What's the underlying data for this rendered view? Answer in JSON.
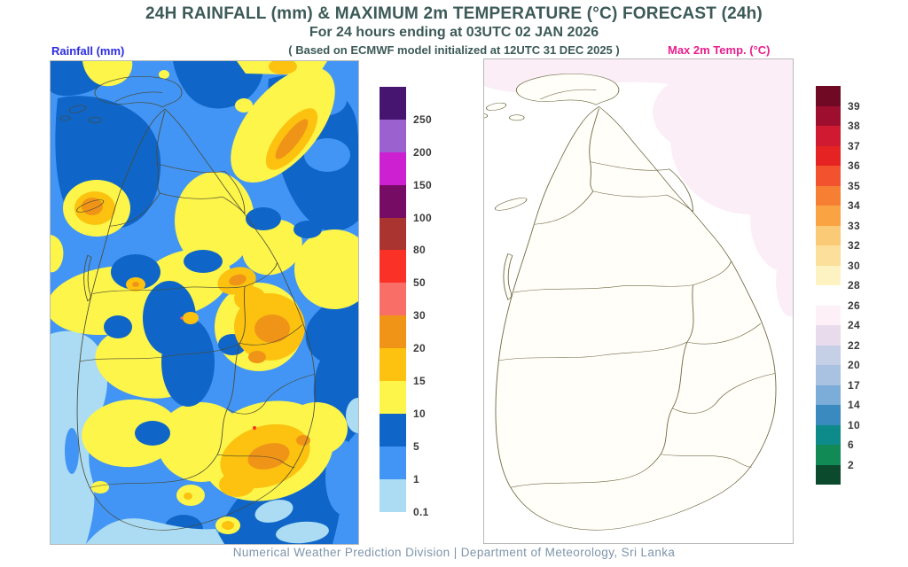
{
  "header": {
    "title": "24H RAINFALL (mm) & MAXIMUM 2m TEMPERATURE (°C) FORECAST (24h)",
    "subtitle": "For 24 hours ending at 03UTC 02 JAN 2026",
    "model_note": "( Based on ECMWF model initialized at 12UTC 31 DEC 2025 )",
    "title_color": "#3c5a57"
  },
  "rainfall_panel": {
    "label": "Rainfall (mm)",
    "label_color": "#2b2be0",
    "unit": "mm",
    "legend": [
      {
        "color": "#45156f",
        "label": "250"
      },
      {
        "color": "#9b62cf",
        "label": "200"
      },
      {
        "color": "#cd20d0",
        "label": "150"
      },
      {
        "color": "#770c64",
        "label": "100"
      },
      {
        "color": "#a93430",
        "label": "80"
      },
      {
        "color": "#fa3127",
        "label": "50"
      },
      {
        "color": "#fa6e68",
        "label": "30"
      },
      {
        "color": "#f09418",
        "label": "20"
      },
      {
        "color": "#fcc20f",
        "label": "15"
      },
      {
        "color": "#fdf54a",
        "label": "10"
      },
      {
        "color": "#0f66c8",
        "label": "5"
      },
      {
        "color": "#4295f4",
        "label": "1"
      },
      {
        "color": "#abdcf3",
        "label": "0.1"
      }
    ]
  },
  "temperature_panel": {
    "label": "Max 2m Temp. (°C)",
    "label_color": "#ea1f8e",
    "unit": "°C",
    "legend": [
      {
        "color": "#700a24",
        "label": "39"
      },
      {
        "color": "#9e0e2e",
        "label": "38"
      },
      {
        "color": "#cf1a31",
        "label": "37"
      },
      {
        "color": "#e42322",
        "label": "36"
      },
      {
        "color": "#f3522e",
        "label": "35"
      },
      {
        "color": "#f67f33",
        "label": "34"
      },
      {
        "color": "#faa342",
        "label": "33"
      },
      {
        "color": "#fbca76",
        "label": "32"
      },
      {
        "color": "#fcdf9a",
        "label": "30"
      },
      {
        "color": "#fdf2c2",
        "label": "28"
      },
      {
        "color": "#ffffff",
        "label": "26"
      },
      {
        "color": "#fdf0f6",
        "label": "24"
      },
      {
        "color": "#e8dcec",
        "label": "22"
      },
      {
        "color": "#c5cfe6",
        "label": "20"
      },
      {
        "color": "#a9c2e2",
        "label": "17"
      },
      {
        "color": "#7cadd8",
        "label": "14"
      },
      {
        "color": "#3a8abf",
        "label": "10"
      },
      {
        "color": "#0d8a8a",
        "label": "6"
      },
      {
        "color": "#128a55",
        "label": "2"
      },
      {
        "color": "#0b4a2c",
        "label": ""
      }
    ]
  },
  "footer": {
    "caption": "Numerical Weather Prediction Division | Department of Meteorology, Sri Lanka"
  }
}
